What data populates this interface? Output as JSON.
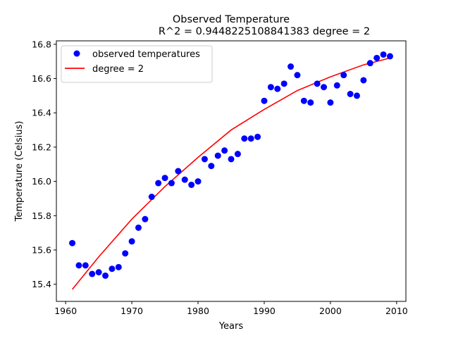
{
  "chart_data": {
    "type": "scatter",
    "title": "Observed Temperature",
    "subtitle": "R^2 = 0.9448225108841383 degree = 2",
    "xlabel": "Years",
    "ylabel": "Temperature (Celsius)",
    "xlim": [
      1958.6,
      2011.4
    ],
    "ylim": [
      15.3,
      16.82
    ],
    "xticks": [
      1960,
      1970,
      1980,
      1990,
      2000,
      2010
    ],
    "yticks": [
      15.4,
      15.6,
      15.8,
      16.0,
      16.2,
      16.4,
      16.6,
      16.8
    ],
    "xtick_labels": [
      "1960",
      "1970",
      "1980",
      "1990",
      "2000",
      "2010"
    ],
    "ytick_labels": [
      "15.4",
      "15.6",
      "15.8",
      "16.0",
      "16.2",
      "16.4",
      "16.6",
      "16.8"
    ],
    "grid": false,
    "legend_position": "top-left",
    "series": [
      {
        "name": "observed temperatures",
        "kind": "scatter",
        "color": "#0000ff",
        "x": [
          1961,
          1962,
          1963,
          1964,
          1965,
          1966,
          1967,
          1968,
          1969,
          1970,
          1971,
          1972,
          1973,
          1974,
          1975,
          1976,
          1977,
          1978,
          1979,
          1980,
          1981,
          1982,
          1983,
          1984,
          1985,
          1986,
          1987,
          1988,
          1989,
          1990,
          1991,
          1992,
          1993,
          1994,
          1995,
          1996,
          1997,
          1998,
          1999,
          2000,
          2001,
          2002,
          2003,
          2004,
          2005,
          2006,
          2007,
          2008,
          2009
        ],
        "y": [
          15.64,
          15.51,
          15.51,
          15.46,
          15.47,
          15.45,
          15.49,
          15.5,
          15.58,
          15.65,
          15.73,
          15.78,
          15.91,
          15.99,
          16.02,
          15.99,
          16.06,
          16.01,
          15.98,
          16.0,
          16.13,
          16.09,
          16.15,
          16.18,
          16.13,
          16.16,
          16.25,
          16.25,
          16.26,
          16.47,
          16.55,
          16.54,
          16.57,
          16.67,
          16.62,
          16.47,
          16.46,
          16.57,
          16.55,
          16.46,
          16.56,
          16.62,
          16.51,
          16.5,
          16.59,
          16.69,
          16.72,
          16.74,
          16.73
        ]
      },
      {
        "name": "degree = 2",
        "kind": "line",
        "color": "#ff0000",
        "x": [
          1961,
          1965,
          1970,
          1975,
          1980,
          1985,
          1990,
          1995,
          2000,
          2005,
          2009
        ],
        "y": [
          15.37,
          15.56,
          15.78,
          15.97,
          16.14,
          16.3,
          16.42,
          16.53,
          16.61,
          16.68,
          16.72
        ]
      }
    ]
  }
}
